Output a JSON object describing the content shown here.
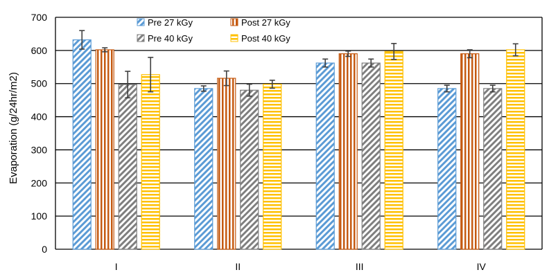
{
  "chart_data": {
    "type": "bar",
    "title": "",
    "xlabel": "",
    "ylabel": "Evaporation (g/24hr/m2)",
    "ylim": [
      0,
      700
    ],
    "yticks": [
      "0",
      "100",
      "200",
      "300",
      "400",
      "500",
      "600",
      "700"
    ],
    "categories": [
      "I",
      "II",
      "III",
      "IV"
    ],
    "grid": true,
    "legend_position": "top-center",
    "series": [
      {
        "name": "Pre 27 kGy",
        "values": [
          632,
          485,
          562,
          485
        ],
        "errors": [
          28,
          8,
          12,
          10
        ],
        "color": "#5b9bd5",
        "pattern": "diagonal"
      },
      {
        "name": "Post 27 kGy",
        "values": [
          602,
          516,
          590,
          590
        ],
        "errors": [
          6,
          22,
          8,
          12
        ],
        "color": "#c55a11",
        "pattern": "vertical"
      },
      {
        "name": "Pre 40 kGy",
        "values": [
          497,
          480,
          562,
          485
        ],
        "errors": [
          40,
          18,
          12,
          10
        ],
        "color": "#7f7f7f",
        "pattern": "diagonal"
      },
      {
        "name": "Post 40 kGy",
        "values": [
          527,
          498,
          597,
          602
        ],
        "errors": [
          52,
          12,
          24,
          18
        ],
        "color": "#ffc000",
        "pattern": "horizontal"
      }
    ]
  }
}
